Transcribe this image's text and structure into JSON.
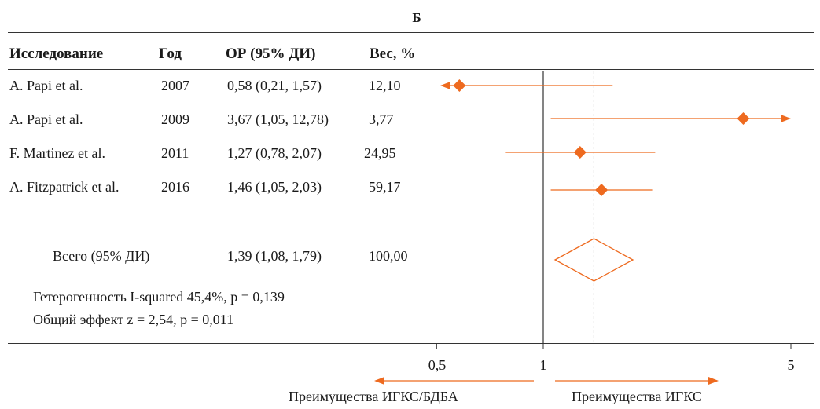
{
  "panel_label": "Б",
  "table": {
    "headers": [
      "Исследование",
      "Год",
      "ОР (95% ДИ)",
      "Вес, %"
    ],
    "rows": [
      {
        "study": "A. Papi et al.",
        "year": "2007",
        "ci": "0,58 (0,21, 1,57)",
        "weight": "12,10"
      },
      {
        "study": "A. Papi et al.",
        "year": "2009",
        "ci": "3,67 (1,05, 12,78)",
        "weight": "3,77"
      },
      {
        "study": "F. Martinez et al.",
        "year": "2011",
        "ci": "1,27 (0,78, 2,07)",
        "weight": "24,95"
      },
      {
        "study": "A. Fitzpatrick et al.",
        "year": "2016",
        "ci": "1,46 (1,05, 2,03)",
        "weight": "59,17"
      }
    ],
    "total": {
      "label": "Всего (95% ДИ)",
      "ci": "1,39 (1,08, 1,79)",
      "weight": "100,00"
    },
    "notes": [
      "Гетерогенность I-squared 45,4%, p = 0,139",
      "Общий эффект z = 2,54, p = 0,011"
    ]
  },
  "chart_data": {
    "type": "forest",
    "scale": "log",
    "xlim": [
      0.5,
      5
    ],
    "ticks": [
      {
        "value": 0.5,
        "label": "0,5"
      },
      {
        "value": 1,
        "label": "1"
      },
      {
        "value": 5,
        "label": "5"
      }
    ],
    "null_line": 1,
    "studies": [
      {
        "estimate": 0.58,
        "lower": 0.21,
        "upper": 1.57
      },
      {
        "estimate": 3.67,
        "lower": 1.05,
        "upper": 12.78
      },
      {
        "estimate": 1.27,
        "lower": 0.78,
        "upper": 2.07
      },
      {
        "estimate": 1.46,
        "lower": 1.05,
        "upper": 2.03
      }
    ],
    "pooled": {
      "estimate": 1.39,
      "lower": 1.08,
      "upper": 1.79
    },
    "direction_labels": {
      "left": "Преимущества ИГКС/БДБА",
      "right": "Преимущества ИГКС"
    },
    "colors": {
      "marker": "#ee6a1f",
      "axis": "#333333"
    }
  }
}
